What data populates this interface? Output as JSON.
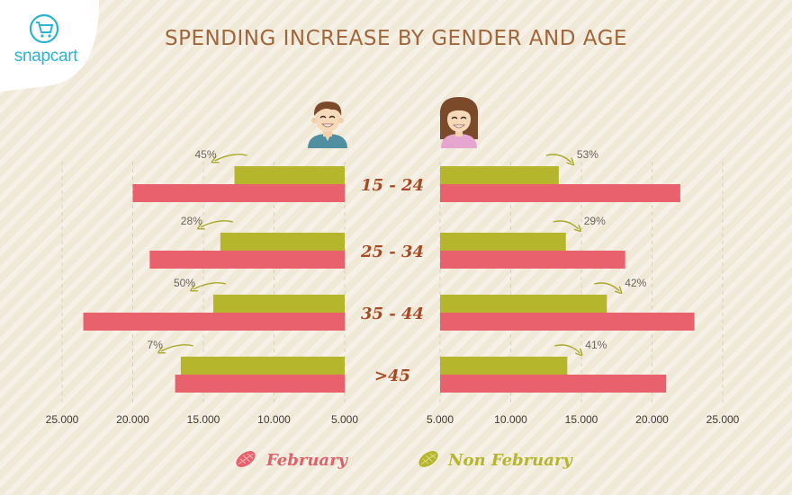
{
  "brand": {
    "logo_text": "snapcart",
    "logo_color": "#2ab3d4"
  },
  "chart_data": {
    "type": "bar",
    "title": "SPENDING INCREASE BY GENDER AND AGE",
    "categories": [
      "15 - 24",
      "25 - 34",
      "35 - 44",
      ">45"
    ],
    "panels": [
      {
        "name": "male-icon",
        "series": [
          {
            "name": "Non February",
            "values": [
              12800,
              13800,
              14300,
              16600
            ]
          },
          {
            "name": "February",
            "values": [
              20000,
              18800,
              23500,
              17000
            ]
          }
        ],
        "percent_labels": [
          "45%",
          "28%",
          "50%",
          "7%"
        ]
      },
      {
        "name": "female-icon",
        "series": [
          {
            "name": "Non February",
            "values": [
              13400,
              13900,
              16800,
              14000
            ]
          },
          {
            "name": "February",
            "values": [
              22000,
              18100,
              23000,
              21000
            ]
          }
        ],
        "percent_labels": [
          "53%",
          "29%",
          "42%",
          "41%"
        ]
      }
    ],
    "left_ticks": [
      "25.000",
      "20.000",
      "15.000",
      "10.000",
      "5.000"
    ],
    "right_ticks": [
      "5.000",
      "10.000",
      "15.000",
      "20.000",
      "25.000"
    ],
    "axis_range": [
      5000,
      25000
    ],
    "legend": [
      "February",
      "Non February"
    ],
    "legend_placement": "bottom-center",
    "colors": {
      "February": "#e8616c",
      "Non February": "#b5b62b",
      "title": "#a0673c",
      "category": "#a64a26"
    },
    "grid": true
  }
}
